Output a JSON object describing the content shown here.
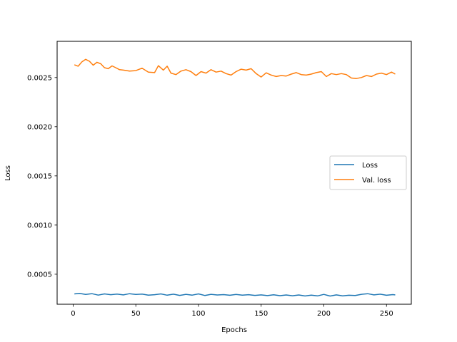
{
  "chart_data": {
    "type": "line",
    "title": "",
    "xlabel": "Epochs",
    "ylabel": "Loss",
    "xlim": [
      -12.8,
      269.8
    ],
    "ylim": [
      0.000195,
      0.002868
    ],
    "xticks": [
      0,
      50,
      100,
      150,
      200,
      250
    ],
    "xtick_labels": [
      "0",
      "50",
      "100",
      "150",
      "200",
      "250"
    ],
    "yticks": [
      0.0005,
      0.001,
      0.0015,
      0.002,
      0.0025
    ],
    "ytick_labels": [
      "0.0005",
      "0.0010",
      "0.0015",
      "0.0020",
      "0.0025"
    ],
    "grid": false,
    "legend_position": "center-right",
    "series": [
      {
        "name": "Loss",
        "color": "#1f77b4",
        "x": [
          1,
          5,
          10,
          15,
          20,
          25,
          30,
          35,
          40,
          45,
          50,
          55,
          60,
          65,
          70,
          75,
          80,
          85,
          90,
          95,
          100,
          105,
          110,
          115,
          120,
          125,
          130,
          135,
          140,
          145,
          150,
          155,
          160,
          165,
          170,
          175,
          180,
          185,
          190,
          195,
          200,
          205,
          210,
          215,
          220,
          225,
          230,
          235,
          240,
          245,
          250,
          255,
          257
        ],
        "y": [
          0.0003,
          0.000305,
          0.000295,
          0.000302,
          0.000288,
          0.0003,
          0.000292,
          0.000298,
          0.00029,
          0.000302,
          0.000295,
          0.000298,
          0.000288,
          0.000292,
          0.0003,
          0.000287,
          0.000297,
          0.000285,
          0.000296,
          0.000288,
          0.0003,
          0.000284,
          0.000296,
          0.000289,
          0.000293,
          0.000286,
          0.000295,
          0.000287,
          0.000292,
          0.000285,
          0.00029,
          0.000283,
          0.000291,
          0.000282,
          0.000289,
          0.000281,
          0.000289,
          0.000279,
          0.000287,
          0.00028,
          0.000295,
          0.000278,
          0.00029,
          0.00028,
          0.000286,
          0.000284,
          0.000296,
          0.000302,
          0.00029,
          0.000297,
          0.000286,
          0.000293,
          0.00029
        ]
      },
      {
        "name": "Val. loss",
        "color": "#ff7f0e",
        "x": [
          1,
          4,
          7,
          10,
          13,
          16,
          19,
          22,
          25,
          28,
          31,
          34,
          37,
          40,
          45,
          50,
          55,
          60,
          65,
          68,
          72,
          75,
          78,
          82,
          86,
          90,
          94,
          98,
          102,
          106,
          110,
          114,
          118,
          122,
          126,
          130,
          134,
          138,
          142,
          146,
          150,
          154,
          158,
          162,
          166,
          170,
          174,
          178,
          182,
          186,
          190,
          194,
          198,
          202,
          206,
          210,
          214,
          218,
          222,
          226,
          230,
          234,
          238,
          242,
          246,
          250,
          254,
          257
        ],
        "y": [
          0.00263,
          0.002615,
          0.00266,
          0.002685,
          0.002665,
          0.002625,
          0.002655,
          0.00264,
          0.0026,
          0.00259,
          0.002618,
          0.0026,
          0.00258,
          0.002575,
          0.002565,
          0.00257,
          0.002595,
          0.002555,
          0.00255,
          0.00262,
          0.002575,
          0.002615,
          0.002545,
          0.00253,
          0.002565,
          0.00258,
          0.00256,
          0.00252,
          0.00256,
          0.002545,
          0.00258,
          0.002555,
          0.002565,
          0.00254,
          0.002525,
          0.00256,
          0.002585,
          0.002575,
          0.00259,
          0.00254,
          0.002505,
          0.002548,
          0.002525,
          0.00251,
          0.00252,
          0.002515,
          0.002535,
          0.00255,
          0.00253,
          0.002525,
          0.002535,
          0.00255,
          0.00256,
          0.00251,
          0.00254,
          0.00253,
          0.00254,
          0.00253,
          0.002495,
          0.00249,
          0.0025,
          0.00252,
          0.00251,
          0.002535,
          0.002545,
          0.00253,
          0.002555,
          0.002535
        ]
      }
    ]
  }
}
